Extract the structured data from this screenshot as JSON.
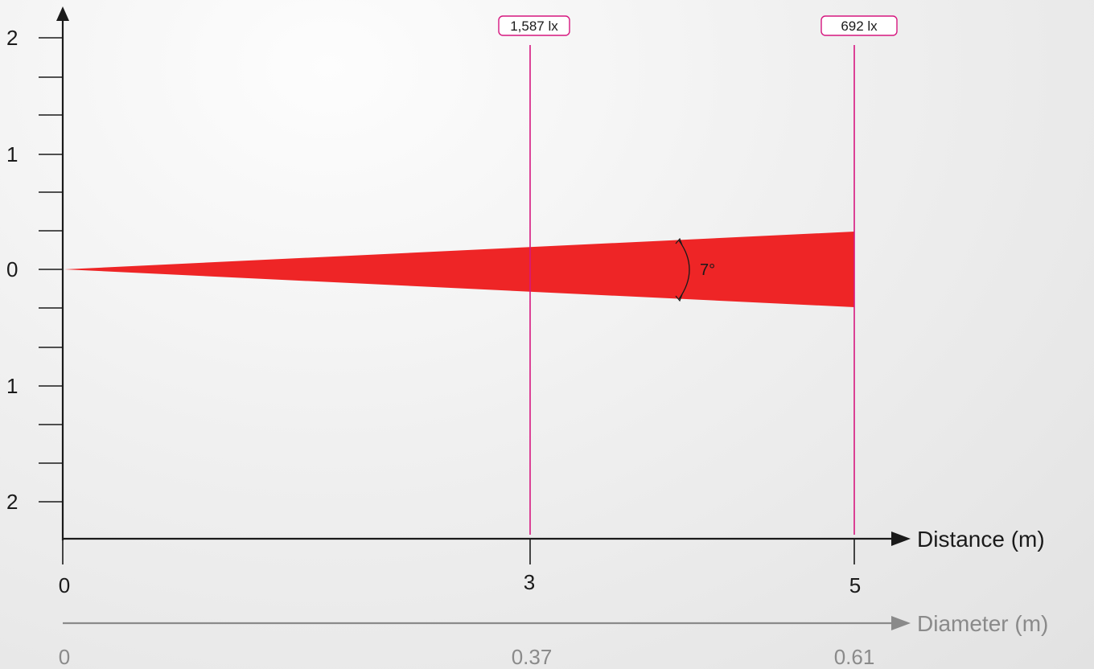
{
  "chart_data": {
    "type": "beam-diagram",
    "beam_angle_label": "7°",
    "beam_color": "#ee2526",
    "marker_color": "#d6177f",
    "x_axis": {
      "title": "Distance (m)",
      "range": [
        0,
        5
      ],
      "ticks": [
        "0",
        "3",
        "5"
      ]
    },
    "diameter_axis": {
      "title": "Diameter (m)",
      "ticks": [
        "0",
        "0.37",
        "0.61"
      ]
    },
    "y_axis": {
      "range": [
        -2,
        2
      ],
      "tick_labels": [
        "2",
        "1",
        "0",
        "1",
        "2"
      ]
    },
    "markers": [
      {
        "distance": 3,
        "lux": "1,587 lx",
        "diameter": "0.37"
      },
      {
        "distance": 5,
        "lux": "692 lx",
        "diameter": "0.61"
      }
    ]
  }
}
